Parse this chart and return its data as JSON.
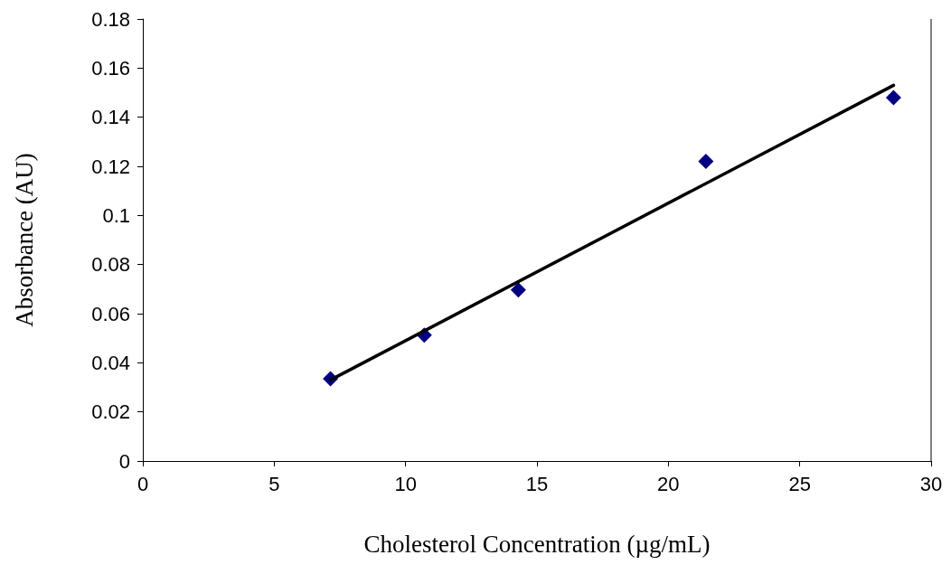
{
  "chart_data": {
    "type": "scatter",
    "xlabel": "Cholesterol Concentration (µg/mL)",
    "ylabel": "Absorbance (AU)",
    "xlim": [
      0,
      30
    ],
    "xticks": [
      0,
      5,
      10,
      15,
      20,
      25,
      30
    ],
    "ylim": [
      0,
      0.18
    ],
    "yticks": [
      0,
      0.02,
      0.04,
      0.06,
      0.08,
      0.1,
      0.12,
      0.14,
      0.16,
      0.18
    ],
    "series": [
      {
        "color": "#000080",
        "marker": "diamond",
        "x": [
          7.14,
          10.71,
          14.29,
          21.43,
          28.57
        ],
        "values": [
          0.0335,
          0.0513,
          0.0697,
          0.122,
          0.148
        ]
      },
      {
        "type": "line",
        "color": "#000000",
        "marker": "none",
        "line_style": "solid",
        "x": [
          7.14,
          28.57
        ],
        "values": [
          0.033,
          0.153
        ]
      }
    ]
  }
}
